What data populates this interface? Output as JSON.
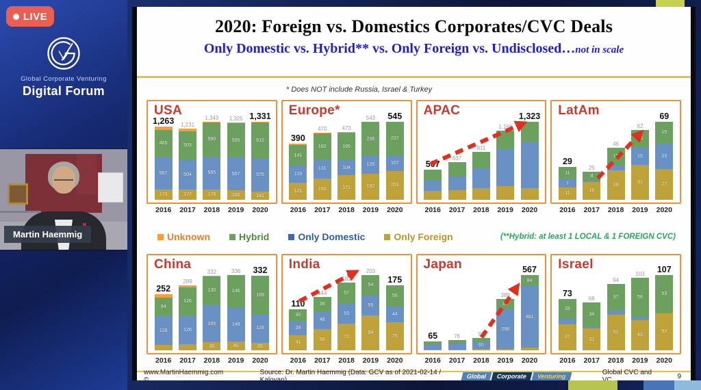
{
  "sidebar": {
    "live_label": "LIVE",
    "brand_line1": "Global Corporate Venturing",
    "brand_line2": "Digital Forum",
    "speaker_name": "Martin Haemmig"
  },
  "slide": {
    "title": "2020: Foreign vs. Domestics Corporates/CVC Deals",
    "subtitle": "Only Domestic vs.  Hybrid** vs. Only Foreign vs. Undisclosed…",
    "subtitle_note": "not in scale",
    "asterisk_note": "* Does NOT include Russia, Israel & Turkey",
    "hybrid_note": "(**Hybrid: at least 1 LOCAL & 1 FOREIGN CVC)",
    "legend": [
      {
        "label": "Unknown",
        "swatch": "#f2a03d",
        "text_color": "#e0812f"
      },
      {
        "label": "Hybrid",
        "swatch": "#6ba05e",
        "text_color": "#4e8a3c"
      },
      {
        "label": "Only Domestic",
        "swatch": "#3f69a8",
        "text_color": "#2f5e9e"
      },
      {
        "label": "Only Foreign",
        "swatch": "#bfa23a",
        "text_color": "#b8952e"
      }
    ],
    "footer": {
      "site": "www.MartinHaemmig.com ©",
      "source": "Source:  Dr. Martin Haemmig  (Data: GCV as of 2021-02-14 / Kaloyan)",
      "badges": [
        {
          "label": "Global",
          "bg": "#4f81bd",
          "fg": "#ffffff"
        },
        {
          "label": "Corporate",
          "bg": "#17375e",
          "fg": "#ffffff"
        },
        {
          "label": "Venturing",
          "bg": "#4f81bd",
          "fg": "#f2d263"
        }
      ],
      "right_label": "Global CVC and VC",
      "page": "9"
    }
  },
  "colors": {
    "arrow": "#e0301e",
    "chart_border": "#e8923d"
  },
  "chart_data": [
    {
      "type": "bar",
      "region": "USA",
      "stacked": true,
      "categories": [
        "2016",
        "2017",
        "2018",
        "2019",
        "2020"
      ],
      "series": [
        {
          "name": "Only Foreign",
          "color": "#bfa23a",
          "values": [
            173,
            177,
            178,
            160,
            141
          ]
        },
        {
          "name": "Only Domestic",
          "color": "#6991c4",
          "values": [
            567,
            504,
            565,
            567,
            576
          ]
        },
        {
          "name": "Hybrid",
          "color": "#6ba05e",
          "values": [
            465,
            503,
            590,
            595,
            612
          ]
        },
        {
          "name": "Unknown",
          "color": "#f2a03d",
          "values": [
            58,
            47,
            10,
            3,
            2
          ]
        }
      ],
      "totals": [
        1263,
        1231,
        1343,
        1325,
        1331
      ]
    },
    {
      "type": "bar",
      "region": "Europe*",
      "stacked": true,
      "categories": [
        "2016",
        "2017",
        "2018",
        "2019",
        "2020"
      ],
      "series": [
        {
          "name": "Only Foreign",
          "color": "#bfa23a",
          "values": [
            121,
            150,
            171,
            182,
            201
          ]
        },
        {
          "name": "Only Domestic",
          "color": "#6991c4",
          "values": [
            119,
            131,
            104,
            126,
            107
          ]
        },
        {
          "name": "Hybrid",
          "color": "#6ba05e",
          "values": [
            141,
            182,
            195,
            235,
            237
          ]
        },
        {
          "name": "Unknown",
          "color": "#f2a03d",
          "values": [
            9,
            7,
            3,
            0,
            0
          ]
        }
      ],
      "totals": [
        390,
        470,
        473,
        543,
        545
      ]
    },
    {
      "type": "bar",
      "region": "APAC",
      "stacked": true,
      "hide_segment_labels": true,
      "categories": [
        "2016",
        "2017",
        "2018",
        "2019",
        "2020"
      ],
      "series": [
        {
          "name": "Only Foreign",
          "color": "#bfa23a",
          "values": [
            150,
            160,
            200,
            230,
            200
          ]
        },
        {
          "name": "Only Domestic",
          "color": "#6991c4",
          "values": [
            180,
            230,
            340,
            640,
            790
          ]
        },
        {
          "name": "Hybrid",
          "color": "#6ba05e",
          "values": [
            177,
            247,
            271,
            298,
            333
          ]
        },
        {
          "name": "Unknown",
          "color": "#f2a03d",
          "values": [
            0,
            0,
            0,
            0,
            0
          ]
        }
      ],
      "totals": [
        507,
        637,
        811,
        1168,
        1323
      ],
      "arrow": {
        "x1": 0.1,
        "y1": 0.62,
        "x2": 0.86,
        "y2": 0.2
      }
    },
    {
      "type": "bar",
      "region": "LatAm",
      "stacked": true,
      "categories": [
        "2016",
        "2017",
        "2018",
        "2019",
        "2020"
      ],
      "series": [
        {
          "name": "Only Foreign",
          "color": "#bfa23a",
          "values": [
            11,
            16,
            26,
            31,
            27
          ]
        },
        {
          "name": "Only Domestic",
          "color": "#6991c4",
          "values": [
            7,
            1,
            5,
            15,
            23
          ]
        },
        {
          "name": "Hybrid",
          "color": "#6ba05e",
          "values": [
            11,
            8,
            15,
            16,
            19
          ]
        },
        {
          "name": "Unknown",
          "color": "#f2a03d",
          "values": [
            0,
            0,
            0,
            0,
            0
          ]
        }
      ],
      "totals": [
        29,
        25,
        46,
        62,
        69
      ],
      "arrow": {
        "x1": 0.36,
        "y1": 0.76,
        "x2": 0.72,
        "y2": 0.28
      }
    },
    {
      "type": "bar",
      "region": "China",
      "stacked": true,
      "categories": [
        "2016",
        "2017",
        "2018",
        "2019",
        "2020"
      ],
      "series": [
        {
          "name": "Only Foreign",
          "color": "#bfa23a",
          "values": [
            24,
            28,
            36,
            41,
            35
          ]
        },
        {
          "name": "Only Domestic",
          "color": "#6991c4",
          "values": [
            128,
            126,
            165,
            149,
            128
          ]
        },
        {
          "name": "Hybrid",
          "color": "#6ba05e",
          "values": [
            84,
            126,
            130,
            146,
            169
          ]
        },
        {
          "name": "Unknown",
          "color": "#f2a03d",
          "values": [
            16,
            9,
            1,
            0,
            0
          ]
        }
      ],
      "totals": [
        252,
        289,
        332,
        336,
        332
      ]
    },
    {
      "type": "bar",
      "region": "India",
      "stacked": true,
      "categories": [
        "2016",
        "2017",
        "2018",
        "2019",
        "2020"
      ],
      "series": [
        {
          "name": "Only Foreign",
          "color": "#bfa23a",
          "values": [
            41,
            58,
            72,
            94,
            75
          ]
        },
        {
          "name": "Only Domestic",
          "color": "#6991c4",
          "values": [
            39,
            48,
            53,
            55,
            44
          ]
        },
        {
          "name": "Hybrid",
          "color": "#6ba05e",
          "values": [
            30,
            38,
            57,
            54,
            56
          ]
        },
        {
          "name": "Unknown",
          "color": "#f2a03d",
          "values": [
            0,
            0,
            0,
            0,
            0
          ]
        }
      ],
      "totals": [
        110,
        144,
        182,
        203,
        175
      ],
      "arrow": {
        "x1": 0.13,
        "y1": 0.47,
        "x2": 0.6,
        "y2": 0.15
      }
    },
    {
      "type": "bar",
      "region": "Japan",
      "stacked": true,
      "categories": [
        "2016",
        "2017",
        "2018",
        "2019",
        "2020"
      ],
      "series": [
        {
          "name": "Only Foreign",
          "color": "#bfa23a",
          "values": [
            5,
            5,
            8,
            10,
            22
          ]
        },
        {
          "name": "Only Domestic",
          "color": "#6991c4",
          "values": [
            40,
            48,
            60,
            298,
            461
          ]
        },
        {
          "name": "Hybrid",
          "color": "#6ba05e",
          "values": [
            20,
            23,
            25,
            81,
            84
          ]
        },
        {
          "name": "Unknown",
          "color": "#f2a03d",
          "values": [
            0,
            0,
            0,
            0,
            0
          ]
        }
      ],
      "totals": [
        65,
        76,
        93,
        389,
        567
      ],
      "arrow": {
        "x1": 0.5,
        "y1": 0.84,
        "x2": 0.8,
        "y2": 0.28
      }
    },
    {
      "type": "bar",
      "region": "Israel",
      "stacked": true,
      "categories": [
        "2016",
        "2017",
        "2018",
        "2019",
        "2020"
      ],
      "series": [
        {
          "name": "Only Foreign",
          "color": "#bfa23a",
          "values": [
            37,
            31,
            51,
            43,
            53
          ]
        },
        {
          "name": "Only Domestic",
          "color": "#6991c4",
          "values": [
            8,
            3,
            6,
            4,
            1
          ]
        },
        {
          "name": "Hybrid",
          "color": "#6ba05e",
          "values": [
            28,
            34,
            37,
            56,
            53
          ]
        },
        {
          "name": "Unknown",
          "color": "#f2a03d",
          "values": [
            0,
            0,
            0,
            0,
            0
          ]
        }
      ],
      "totals": [
        73,
        68,
        94,
        103,
        107
      ]
    }
  ]
}
